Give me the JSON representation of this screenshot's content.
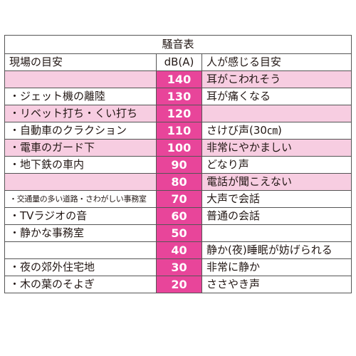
{
  "table": {
    "title": "騒音表",
    "headers": {
      "place": "現場の目安",
      "db": "dB(A)",
      "feel": "人が感じる目安"
    },
    "rows": [
      {
        "place": "",
        "db": "140",
        "feel": "耳がこわれそう",
        "shade": "pink",
        "small": false
      },
      {
        "place": "・ジェット機の離陸",
        "db": "130",
        "feel": "耳が痛くなる",
        "shade": "white",
        "small": false
      },
      {
        "place": "・リベット打ち・くい打ち",
        "db": "120",
        "feel": "",
        "shade": "pink",
        "small": false
      },
      {
        "place": "・自動車のクラクション",
        "db": "110",
        "feel": "さけび声(30㎝)",
        "shade": "white",
        "small": false
      },
      {
        "place": "・電車のガード下",
        "db": "100",
        "feel": "非常にやかましい",
        "shade": "pink",
        "small": false
      },
      {
        "place": "・地下鉄の車内",
        "db": "90",
        "feel": "どなり声",
        "shade": "white",
        "small": false
      },
      {
        "place": "",
        "db": "80",
        "feel": "電話が聞こえない",
        "shade": "pink",
        "small": false
      },
      {
        "place": "・交通量の多い道路・さわがしい事務室",
        "db": "70",
        "feel": "大声で会話",
        "shade": "white",
        "small": true
      },
      {
        "place": "・TVラジオの音",
        "db": "60",
        "feel": "普通の会話",
        "shade": "white",
        "small": false
      },
      {
        "place": "・静かな事務室",
        "db": "50",
        "feel": "",
        "shade": "white",
        "small": false
      },
      {
        "place": "",
        "db": "40",
        "feel": "静か(夜)睡眠が妨げられる",
        "shade": "white",
        "small": false
      },
      {
        "place": "・夜の郊外住宅地",
        "db": "30",
        "feel": "非常に静か",
        "shade": "white",
        "small": false
      },
      {
        "place": "・木の葉のそよぎ",
        "db": "20",
        "feel": "ささやき声",
        "shade": "white",
        "small": false
      }
    ]
  },
  "colors": {
    "db_cell": "#e8459a",
    "pink_row": "#f7cde1",
    "border": "#555555"
  }
}
